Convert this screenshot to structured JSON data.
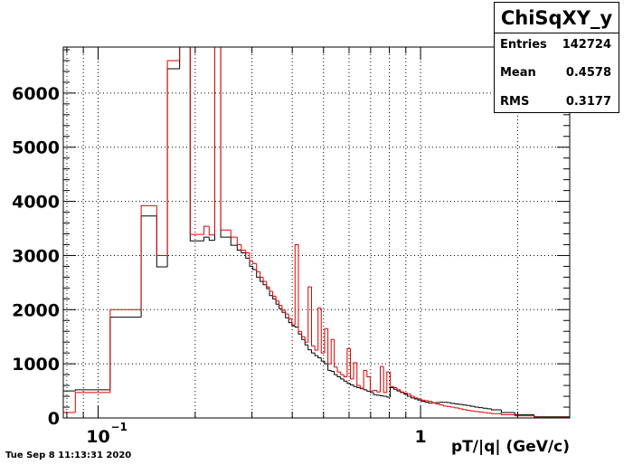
{
  "stats": {
    "title": "ChiSqXY_y",
    "entries_label": "Entries",
    "entries": "142724",
    "mean_label": "Mean",
    "mean": "0.4578",
    "rms_label": "RMS",
    "rms": "0.3177"
  },
  "datestamp": "Tue Sep  8 11:13:31 2020",
  "chart_data": {
    "type": "histogram",
    "title": "ChiSqXY_y",
    "xlabel": "pT/|q| (GeV/c)",
    "ylabel": "",
    "xscale": "log",
    "xlim": [
      0.078,
      2.9
    ],
    "ylim": [
      0,
      6850
    ],
    "grid": true,
    "yticks": [
      0,
      1000,
      2000,
      3000,
      4000,
      5000,
      6000
    ],
    "xticks": [
      {
        "value": 0.1,
        "label": "10",
        "sup": "−1"
      },
      {
        "value": 1,
        "label": "1",
        "sup": ""
      }
    ],
    "colors": {
      "series_black": "#000000",
      "series_red": "#e00000",
      "axes": "#000000",
      "grid": "#000000"
    },
    "series": [
      {
        "color": "#000000",
        "edges": [
          0.078,
          0.085,
          0.109,
          0.136,
          0.152,
          0.164,
          0.179,
          0.193,
          0.213,
          0.221,
          0.23,
          0.24,
          0.258,
          0.27,
          0.278,
          0.287,
          0.295,
          0.302,
          0.31,
          0.318,
          0.325,
          0.333,
          0.34,
          0.348,
          0.356,
          0.364,
          0.372,
          0.381,
          0.39,
          0.399,
          0.408,
          0.418,
          0.428,
          0.438,
          0.448,
          0.459,
          0.47,
          0.481,
          0.492,
          0.504,
          0.516,
          0.528,
          0.54,
          0.552,
          0.565,
          0.578,
          0.592,
          0.606,
          0.62,
          0.635,
          0.65,
          0.666,
          0.682,
          0.698,
          0.715,
          0.732,
          0.75,
          0.768,
          0.786,
          0.805,
          0.825,
          0.845,
          0.866,
          0.888,
          0.91,
          0.933,
          0.957,
          0.981,
          1.006,
          1.032,
          1.059,
          1.087,
          1.116,
          1.146,
          1.177,
          1.209,
          1.242,
          1.277,
          1.313,
          1.35,
          1.389,
          1.43,
          1.472,
          1.516,
          1.562,
          1.61,
          1.66,
          1.78,
          1.96,
          2.25,
          2.9
        ],
        "values": [
          500,
          520,
          1860,
          3730,
          2790,
          6450,
          6850,
          3270,
          3340,
          3280,
          6850,
          3340,
          3190,
          3100,
          3050,
          2950,
          2800,
          2740,
          2600,
          2520,
          2460,
          2390,
          2260,
          2200,
          2100,
          2020,
          1950,
          1850,
          1760,
          1700,
          1680,
          1550,
          1450,
          1350,
          1260,
          1200,
          1150,
          1110,
          1050,
          1000,
          880,
          860,
          800,
          760,
          720,
          680,
          640,
          610,
          580,
          560,
          540,
          520,
          495,
          470,
          430,
          420,
          410,
          400,
          385,
          560,
          530,
          500,
          470,
          440,
          400,
          370,
          350,
          330,
          310,
          290,
          275,
          280,
          285,
          290,
          290,
          285,
          270,
          260,
          250,
          240,
          230,
          215,
          200,
          190,
          180,
          170,
          150,
          100,
          60,
          20
        ]
      },
      {
        "color": "#e00000",
        "edges": [
          0.078,
          0.085,
          0.109,
          0.136,
          0.152,
          0.164,
          0.179,
          0.193,
          0.213,
          0.221,
          0.23,
          0.24,
          0.258,
          0.27,
          0.278,
          0.287,
          0.295,
          0.302,
          0.31,
          0.318,
          0.325,
          0.333,
          0.34,
          0.348,
          0.356,
          0.364,
          0.372,
          0.381,
          0.39,
          0.399,
          0.408,
          0.418,
          0.428,
          0.438,
          0.448,
          0.459,
          0.47,
          0.481,
          0.492,
          0.504,
          0.516,
          0.528,
          0.54,
          0.552,
          0.565,
          0.578,
          0.592,
          0.606,
          0.62,
          0.635,
          0.65,
          0.666,
          0.682,
          0.698,
          0.715,
          0.732,
          0.75,
          0.768,
          0.786,
          0.805,
          0.825,
          0.845,
          0.866,
          0.888,
          0.91,
          0.933,
          0.957,
          0.981,
          1.006,
          1.032,
          1.059,
          1.087,
          1.116,
          1.146,
          1.177,
          1.209,
          1.242,
          1.277,
          1.313,
          1.35,
          1.389,
          1.43,
          1.472,
          1.516,
          1.562,
          1.61,
          1.66,
          1.78,
          1.96,
          2.25,
          2.9
        ],
        "values": [
          100,
          470,
          2000,
          3920,
          3000,
          6600,
          6850,
          3390,
          3540,
          3380,
          6850,
          3470,
          3340,
          3200,
          3100,
          3050,
          2900,
          2850,
          2700,
          2600,
          2520,
          2420,
          2340,
          2250,
          2160,
          2080,
          1990,
          1920,
          1830,
          1720,
          3200,
          1600,
          1500,
          1400,
          2420,
          1330,
          1250,
          2030,
          1200,
          1650,
          1000,
          1450,
          940,
          850,
          800,
          760,
          1280,
          720,
          1020,
          600,
          550,
          880,
          760,
          500,
          510,
          480,
          950,
          470,
          850,
          580,
          560,
          520,
          480,
          460,
          440,
          400,
          370,
          350,
          330,
          320,
          310,
          280,
          260,
          240,
          220,
          210,
          200,
          185,
          170,
          155,
          140,
          130,
          120,
          110,
          100,
          90,
          80,
          60,
          40,
          10
        ]
      }
    ]
  }
}
